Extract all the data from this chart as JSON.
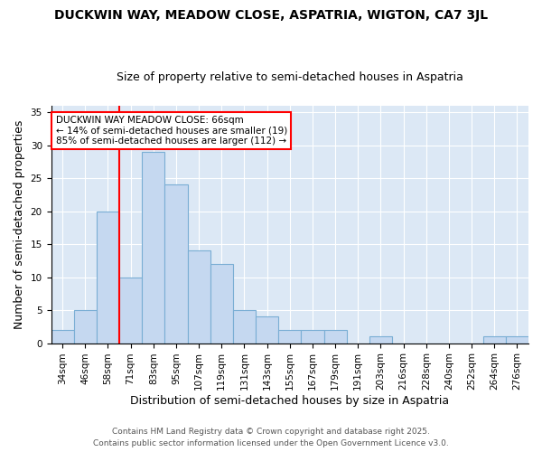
{
  "title_line1": "DUCKWIN WAY, MEADOW CLOSE, ASPATRIA, WIGTON, CA7 3JL",
  "title_line2": "Size of property relative to semi-detached houses in Aspatria",
  "categories": [
    "34sqm",
    "46sqm",
    "58sqm",
    "71sqm",
    "83sqm",
    "95sqm",
    "107sqm",
    "119sqm",
    "131sqm",
    "143sqm",
    "155sqm",
    "167sqm",
    "179sqm",
    "191sqm",
    "203sqm",
    "216sqm",
    "228sqm",
    "240sqm",
    "252sqm",
    "264sqm",
    "276sqm"
  ],
  "values": [
    2,
    5,
    20,
    10,
    29,
    24,
    14,
    12,
    5,
    4,
    2,
    2,
    2,
    0,
    1,
    0,
    0,
    0,
    0,
    1,
    1
  ],
  "bar_color": "#c5d8f0",
  "bar_edge_color": "#7aaed4",
  "vline_x_index": 2.5,
  "vline_color": "red",
  "annotation_title": "DUCKWIN WAY MEADOW CLOSE: 66sqm",
  "annotation_line2": "← 14% of semi-detached houses are smaller (19)",
  "annotation_line3": "85% of semi-detached houses are larger (112) →",
  "annotation_box_facecolor": "white",
  "annotation_box_edgecolor": "red",
  "xlabel": "Distribution of semi-detached houses by size in Aspatria",
  "ylabel": "Number of semi-detached properties",
  "ylim": [
    0,
    36
  ],
  "yticks": [
    0,
    5,
    10,
    15,
    20,
    25,
    30,
    35
  ],
  "background_color": "#dce8f5",
  "footer_line1": "Contains HM Land Registry data © Crown copyright and database right 2025.",
  "footer_line2": "Contains public sector information licensed under the Open Government Licence v3.0.",
  "title_fontsize": 10,
  "subtitle_fontsize": 9,
  "axis_label_fontsize": 9,
  "tick_fontsize": 7.5,
  "annotation_fontsize": 7.5,
  "footer_fontsize": 6.5
}
